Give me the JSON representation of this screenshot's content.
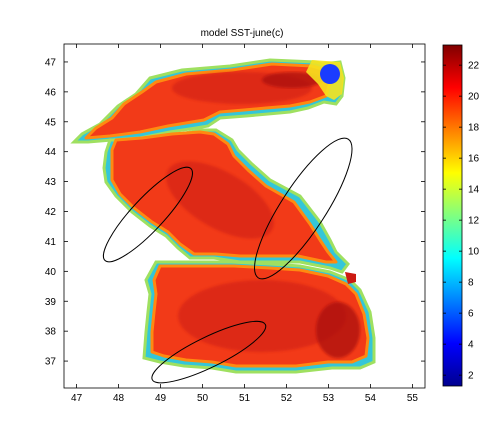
{
  "title": "model SST-june(c)",
  "x_axis": {
    "range": [
      46.7,
      55.3
    ],
    "ticks": [
      "47",
      "48",
      "49",
      "50",
      "51",
      "52",
      "53",
      "54",
      "55"
    ]
  },
  "y_axis": {
    "range": [
      36.1,
      47.6
    ],
    "ticks": [
      "37",
      "38",
      "39",
      "40",
      "41",
      "42",
      "43",
      "44",
      "45",
      "46",
      "47"
    ]
  },
  "colorbar": {
    "range": [
      1.3,
      23.3
    ],
    "ticks": [
      "2",
      "4",
      "6",
      "8",
      "10",
      "12",
      "14",
      "16",
      "18",
      "20",
      "22"
    ],
    "colormap": "jet",
    "stops": [
      "#00008f",
      "#0000ff",
      "#0080ff",
      "#00ffff",
      "#80ff80",
      "#ffff00",
      "#ff8000",
      "#ff0000",
      "#800000"
    ]
  },
  "colors": {
    "sea_main": "#f23a18",
    "sea_warm": "#cc1a12",
    "sea_hot": "#a81010",
    "coast_cool": "#34c6d8",
    "coast_mid": "#9fe060",
    "coast_yellow": "#f6e21e",
    "coast_orange": "#ff8a10",
    "north_cold": "#1a3cff"
  },
  "annotations": [
    {
      "name": "ellipse-east-coast",
      "cx": 52.4,
      "cy": 42.1,
      "rx_deg": 2.3,
      "ry_deg": 0.62,
      "angle_deg": -57
    },
    {
      "name": "ellipse-west-coast",
      "cx": 48.7,
      "cy": 41.9,
      "rx_deg": 1.75,
      "ry_deg": 0.45,
      "angle_deg": -47
    },
    {
      "name": "ellipse-south-coast",
      "cx": 50.15,
      "cy": 37.3,
      "rx_deg": 1.75,
      "ry_deg": 0.42,
      "angle_deg": -26
    }
  ]
}
